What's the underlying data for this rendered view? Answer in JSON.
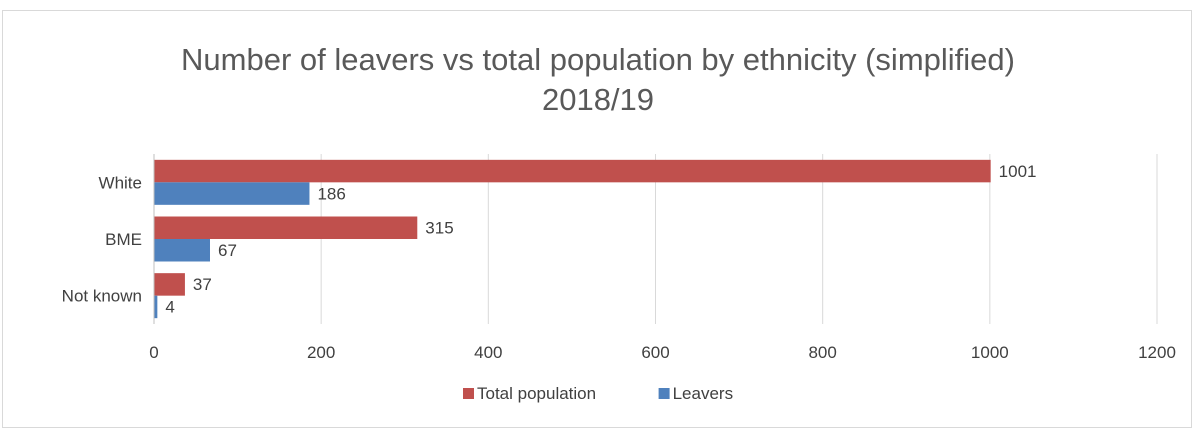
{
  "chart_data": {
    "type": "bar",
    "orientation": "horizontal",
    "title_lines": [
      "Number of leavers vs total population by ethnicity (simplified)",
      "2018/19"
    ],
    "categories": [
      "White",
      "BME",
      "Not known"
    ],
    "series": [
      {
        "name": "Total population",
        "color": "#c0504d",
        "values": [
          1001,
          315,
          37
        ]
      },
      {
        "name": "Leavers",
        "color": "#4f81bd",
        "values": [
          186,
          67,
          4
        ]
      }
    ],
    "xlim": [
      0,
      1200
    ],
    "xticks": [
      0,
      200,
      400,
      600,
      800,
      1000,
      1200
    ],
    "grid": true,
    "legend_position": "bottom"
  }
}
